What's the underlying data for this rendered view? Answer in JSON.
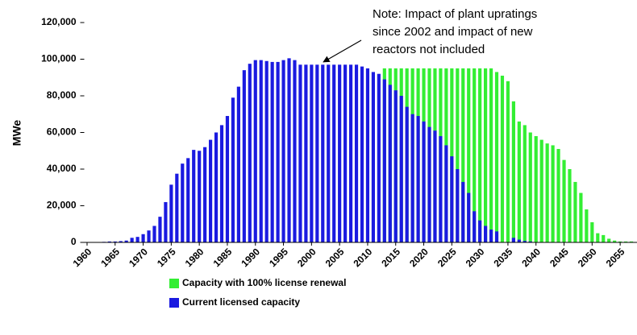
{
  "chart_data": {
    "type": "bar",
    "y_label": "MWe",
    "annotation": [
      "Note: Impact of plant upratings",
      "since 2002 and impact of new",
      "reactors not included"
    ],
    "x": [
      1960,
      1961,
      1962,
      1963,
      1964,
      1965,
      1966,
      1967,
      1968,
      1969,
      1970,
      1971,
      1972,
      1973,
      1974,
      1975,
      1976,
      1977,
      1978,
      1979,
      1980,
      1981,
      1982,
      1983,
      1984,
      1985,
      1986,
      1987,
      1988,
      1989,
      1990,
      1991,
      1992,
      1993,
      1994,
      1995,
      1996,
      1997,
      1998,
      1999,
      2000,
      2001,
      2002,
      2003,
      2004,
      2005,
      2006,
      2007,
      2008,
      2009,
      2010,
      2011,
      2012,
      2013,
      2014,
      2015,
      2016,
      2017,
      2018,
      2019,
      2020,
      2021,
      2022,
      2023,
      2024,
      2025,
      2026,
      2027,
      2028,
      2029,
      2030,
      2031,
      2032,
      2033,
      2034,
      2035,
      2036,
      2037,
      2038,
      2039,
      2040,
      2041,
      2042,
      2043,
      2044,
      2045,
      2046,
      2047,
      2048,
      2049,
      2050,
      2051,
      2052,
      2053,
      2054,
      2055,
      2056,
      2057
    ],
    "xlim": [
      1959.5,
      2058
    ],
    "xticks": [
      1960,
      1965,
      1970,
      1975,
      1980,
      1985,
      1990,
      1995,
      2000,
      2005,
      2010,
      2015,
      2020,
      2025,
      2030,
      2035,
      2040,
      2045,
      2050,
      2055
    ],
    "ylim": [
      0,
      120000
    ],
    "yticks": [
      0,
      {
        "value": 20000,
        "label": "20,000"
      },
      {
        "value": 40000,
        "label": "40,000"
      },
      {
        "value": 60000,
        "label": "60,000"
      },
      {
        "value": 80000,
        "label": "80,000"
      },
      {
        "value": 100000,
        "label": "100,000"
      },
      {
        "value": 120000,
        "label": "120,000"
      }
    ],
    "series": [
      {
        "name": "Capacity with 100% license renewal",
        "color": "#33ee33",
        "values": [
          null,
          null,
          null,
          null,
          null,
          null,
          null,
          null,
          null,
          null,
          null,
          null,
          null,
          null,
          null,
          null,
          null,
          null,
          null,
          null,
          null,
          null,
          null,
          null,
          null,
          null,
          null,
          null,
          null,
          null,
          null,
          null,
          null,
          null,
          null,
          null,
          null,
          null,
          null,
          null,
          null,
          null,
          null,
          null,
          null,
          null,
          null,
          null,
          null,
          null,
          null,
          null,
          null,
          95000,
          95000,
          95000,
          95000,
          95000,
          95000,
          95000,
          95000,
          95000,
          95000,
          95000,
          95000,
          95000,
          95000,
          95000,
          95000,
          95000,
          95000,
          95000,
          95000,
          93000,
          91000,
          88000,
          77000,
          66000,
          64000,
          60000,
          58000,
          56000,
          54000,
          53000,
          51000,
          45000,
          40000,
          33000,
          27000,
          18000,
          11000,
          5000,
          4000,
          2000,
          1000,
          500,
          500,
          500
        ]
      },
      {
        "name": "Current licensed capacity",
        "color": "#1a1ae0",
        "values": [
          0,
          0,
          0,
          300,
          500,
          500,
          700,
          1000,
          2500,
          3000,
          4500,
          6500,
          9000,
          14000,
          22000,
          31500,
          37500,
          43000,
          46000,
          50500,
          50000,
          52000,
          56000,
          60000,
          64000,
          69000,
          79000,
          85000,
          94000,
          97500,
          99500,
          99500,
          99000,
          98500,
          98500,
          99500,
          100500,
          99500,
          97000,
          97000,
          97000,
          97000,
          97000,
          97000,
          97000,
          97000,
          97000,
          97000,
          97000,
          96000,
          95000,
          93000,
          92000,
          89000,
          86000,
          83000,
          80000,
          74000,
          70000,
          69000,
          66000,
          63000,
          61000,
          58000,
          53000,
          47000,
          40000,
          33000,
          27000,
          17000,
          12000,
          9000,
          7000,
          6000,
          0,
          0,
          2500,
          1500,
          800,
          500,
          0,
          0,
          0,
          0,
          0,
          0,
          0,
          0,
          0,
          0,
          0,
          0,
          0,
          0,
          0,
          0,
          0,
          0
        ]
      }
    ]
  }
}
